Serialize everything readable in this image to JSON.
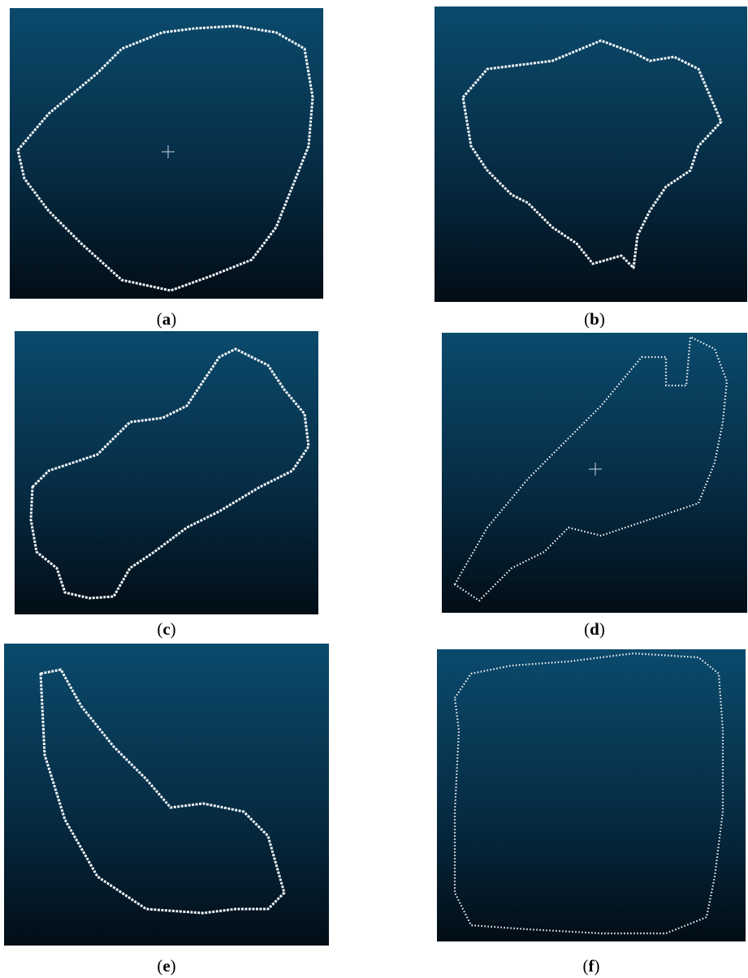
{
  "panels": [
    {
      "open": "(",
      "letter": "a",
      "close": ")"
    },
    {
      "open": "(",
      "letter": "b",
      "close": ")"
    },
    {
      "open": "(",
      "letter": "c",
      "close": ")"
    },
    {
      "open": "(",
      "letter": "d",
      "close": ")"
    },
    {
      "open": "(",
      "letter": "e",
      "close": ")"
    },
    {
      "open": "(",
      "letter": "f",
      "close": ")"
    }
  ]
}
